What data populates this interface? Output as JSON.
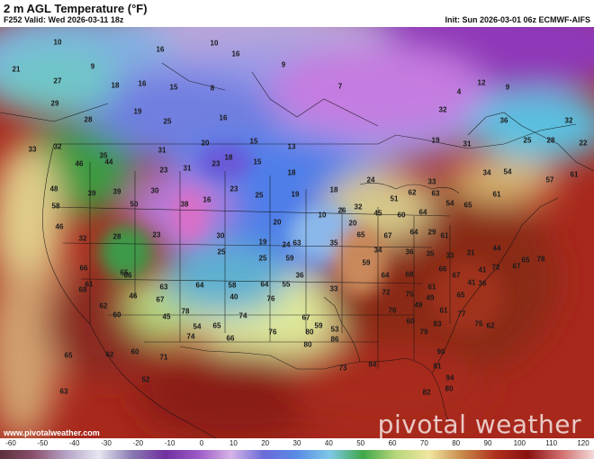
{
  "title": "2 m AGL Temperature (°F)",
  "valid": "F252 Valid: Wed 2026-03-11 18z",
  "init": "Init: Sun 2026-03-01 06z ECMWF-AIFS",
  "watermark": "pivotal weather",
  "site": "www.pivotalweather.com",
  "colorbar": {
    "ticks": [
      "-60",
      "-50",
      "-40",
      "-30",
      "-20",
      "-10",
      "0",
      "10",
      "20",
      "30",
      "40",
      "50",
      "60",
      "70",
      "80",
      "90",
      "100",
      "110",
      "120"
    ],
    "stops": [
      "#5b2f3c",
      "#8a4f6b",
      "#b6a3c7",
      "#e6e6f0",
      "#8a7ab2",
      "#7030a0",
      "#9b59c7",
      "#d6b3e6",
      "#6a6ad8",
      "#5a8ce6",
      "#7ec8e6",
      "#3fa84a",
      "#b8d77a",
      "#f0e6a0",
      "#c88a4a",
      "#b0301e",
      "#8a1010",
      "#d26e6e",
      "#f2d8d8"
    ]
  },
  "temps": [
    {
      "v": "10"
    },
    {
      "v": "16"
    },
    {
      "v": "10"
    },
    {
      "v": "16"
    },
    {
      "v": "9"
    },
    {
      "v": "9"
    },
    {
      "v": "21"
    },
    {
      "v": "27"
    },
    {
      "v": "18"
    },
    {
      "v": "16"
    },
    {
      "v": "15"
    },
    {
      "v": "8"
    },
    {
      "v": "7"
    },
    {
      "v": "4"
    },
    {
      "v": "12"
    },
    {
      "v": "9"
    },
    {
      "v": "29"
    },
    {
      "v": "28"
    },
    {
      "v": "19"
    },
    {
      "v": "25"
    },
    {
      "v": "16"
    },
    {
      "v": "32"
    },
    {
      "v": "32"
    },
    {
      "v": "36"
    },
    {
      "v": "32"
    },
    {
      "v": "33"
    },
    {
      "v": "35"
    },
    {
      "v": "31"
    },
    {
      "v": "20"
    },
    {
      "v": "15"
    },
    {
      "v": "13"
    },
    {
      "v": "19"
    },
    {
      "v": "31"
    },
    {
      "v": "25"
    },
    {
      "v": "28"
    },
    {
      "v": "22"
    },
    {
      "v": "46"
    },
    {
      "v": "44"
    },
    {
      "v": "23"
    },
    {
      "v": "31"
    },
    {
      "v": "23"
    },
    {
      "v": "18"
    },
    {
      "v": "15"
    },
    {
      "v": "18"
    },
    {
      "v": "48"
    },
    {
      "v": "39"
    },
    {
      "v": "39"
    },
    {
      "v": "30"
    },
    {
      "v": "23"
    },
    {
      "v": "25"
    },
    {
      "v": "19"
    },
    {
      "v": "18"
    },
    {
      "v": "24"
    },
    {
      "v": "33"
    },
    {
      "v": "34"
    },
    {
      "v": "54"
    },
    {
      "v": "58"
    },
    {
      "v": "50"
    },
    {
      "v": "38"
    },
    {
      "v": "16"
    },
    {
      "v": "20"
    },
    {
      "v": "19"
    },
    {
      "v": "10"
    },
    {
      "v": "26"
    },
    {
      "v": "32"
    },
    {
      "v": "51"
    },
    {
      "v": "62"
    },
    {
      "v": "63"
    },
    {
      "v": "61"
    },
    {
      "v": "57"
    },
    {
      "v": "61"
    },
    {
      "v": "63"
    },
    {
      "v": "35"
    },
    {
      "v": "20"
    },
    {
      "v": "45"
    },
    {
      "v": "60"
    },
    {
      "v": "64"
    },
    {
      "v": "54"
    },
    {
      "v": "65"
    },
    {
      "v": "46"
    },
    {
      "v": "32"
    },
    {
      "v": "28"
    },
    {
      "v": "23"
    },
    {
      "v": "30"
    },
    {
      "v": "25"
    },
    {
      "v": "24"
    },
    {
      "v": "25"
    },
    {
      "v": "59"
    },
    {
      "v": "65"
    },
    {
      "v": "67"
    },
    {
      "v": "64"
    },
    {
      "v": "29"
    },
    {
      "v": "61"
    },
    {
      "v": "66"
    },
    {
      "v": "65"
    },
    {
      "v": "63"
    },
    {
      "v": "64"
    },
    {
      "v": "58"
    },
    {
      "v": "64"
    },
    {
      "v": "55"
    },
    {
      "v": "34"
    },
    {
      "v": "36"
    },
    {
      "v": "35"
    },
    {
      "v": "33"
    },
    {
      "v": "31"
    },
    {
      "v": "61"
    },
    {
      "v": "66"
    },
    {
      "v": "67"
    },
    {
      "v": "78"
    },
    {
      "v": "65"
    },
    {
      "v": "40"
    },
    {
      "v": "36"
    },
    {
      "v": "33"
    },
    {
      "v": "59"
    },
    {
      "v": "64"
    },
    {
      "v": "68"
    },
    {
      "v": "61"
    },
    {
      "v": "65"
    },
    {
      "v": "66"
    },
    {
      "v": "67"
    },
    {
      "v": "41"
    },
    {
      "v": "41"
    },
    {
      "v": "36"
    },
    {
      "v": "44"
    },
    {
      "v": "72"
    },
    {
      "v": "67"
    },
    {
      "v": "65"
    },
    {
      "v": "78"
    },
    {
      "v": "68"
    },
    {
      "v": "62"
    },
    {
      "v": "60"
    },
    {
      "v": "46"
    },
    {
      "v": "45"
    },
    {
      "v": "54"
    },
    {
      "v": "74"
    },
    {
      "v": "76"
    },
    {
      "v": "67"
    },
    {
      "v": "59"
    },
    {
      "v": "53"
    },
    {
      "v": "72"
    },
    {
      "v": "75"
    },
    {
      "v": "49"
    },
    {
      "v": "49"
    },
    {
      "v": "61"
    },
    {
      "v": "76"
    },
    {
      "v": "77"
    },
    {
      "v": "75"
    },
    {
      "v": "62"
    },
    {
      "v": "60"
    },
    {
      "v": "79"
    },
    {
      "v": "83"
    },
    {
      "v": "74"
    },
    {
      "v": "66"
    },
    {
      "v": "76"
    },
    {
      "v": "80"
    },
    {
      "v": "80"
    },
    {
      "v": "86"
    },
    {
      "v": "73"
    },
    {
      "v": "84"
    },
    {
      "v": "90"
    },
    {
      "v": "81"
    },
    {
      "v": "94"
    },
    {
      "v": "80"
    },
    {
      "v": "82"
    },
    {
      "v": "71"
    },
    {
      "v": "60"
    },
    {
      "v": "62"
    },
    {
      "v": "65"
    },
    {
      "v": "63"
    },
    {
      "v": "52"
    }
  ]
}
